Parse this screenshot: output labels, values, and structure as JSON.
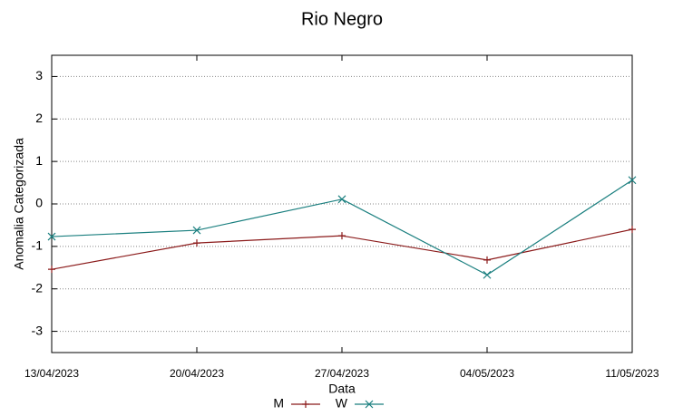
{
  "chart_data": {
    "type": "line",
    "title": "Rio Negro",
    "x_label": "Data",
    "y_label": "Anomalia Categorizada",
    "categories": [
      "13/04/2023",
      "20/04/2023",
      "27/04/2023",
      "04/05/2023",
      "11/05/2023"
    ],
    "series": [
      {
        "name": "M",
        "color": "#8b1a1a",
        "marker": "+",
        "values": [
          -1.54,
          -0.92,
          -0.75,
          -1.32,
          -0.6
        ]
      },
      {
        "name": "W",
        "color": "#1a7f7f",
        "marker": "x",
        "values": [
          -0.77,
          -0.62,
          0.11,
          -1.67,
          0.56
        ]
      }
    ],
    "ylim": [
      -3.5,
      3.5
    ],
    "yticks": [
      -3,
      -2,
      -1,
      0,
      1,
      2,
      3
    ],
    "grid": true
  }
}
